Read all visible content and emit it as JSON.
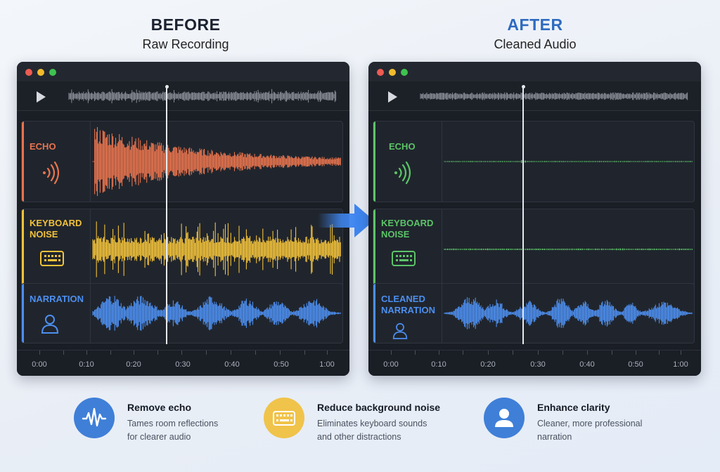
{
  "before": {
    "heading": "BEFORE",
    "subheading": "Raw Recording",
    "tracks": [
      {
        "label_line1": "ECHO",
        "label_line2": "",
        "icon": "sound-waves-icon",
        "color": "#e8744e"
      },
      {
        "label_line1": "KEYBOARD",
        "label_line2": "NOISE",
        "icon": "keyboard-icon",
        "color": "#f2c23a"
      },
      {
        "label_line1": "NARRATION",
        "label_line2": "",
        "icon": "person-icon",
        "color": "#4d8ff0"
      }
    ]
  },
  "after": {
    "heading": "AFTER",
    "subheading": "Cleaned Audio",
    "tracks": [
      {
        "label_line1": "ECHO",
        "label_line2": "",
        "icon": "sound-waves-icon",
        "color": "#5cc468"
      },
      {
        "label_line1": "KEYBOARD",
        "label_line2": "NOISE",
        "icon": "keyboard-icon",
        "color": "#5cc468"
      },
      {
        "label_line1": "CLEANED",
        "label_line2": "NARRATION",
        "icon": "person-icon",
        "color": "#4d8ff0"
      }
    ]
  },
  "timeline": {
    "labels": [
      "0:00",
      "0:10",
      "0:20",
      "0:30",
      "0:40",
      "0:50",
      "1:00"
    ],
    "playhead_time": "0:27"
  },
  "features": [
    {
      "title": "Remove echo",
      "desc_line1": "Tames room reflections",
      "desc_line2": "for clearer audio",
      "icon": "waveform-icon",
      "color": "#3f7fd8"
    },
    {
      "title": "Reduce background noise",
      "desc_line1": "Eliminates keyboard sounds",
      "desc_line2": "and other distractions",
      "icon": "keyboard-icon",
      "color": "#f0c34a"
    },
    {
      "title": "Enhance clarity",
      "desc_line1": "Cleaner, more professional",
      "desc_line2": "narration",
      "icon": "user-icon",
      "color": "#3f7fd8"
    }
  ],
  "colors": {
    "accent_blue": "#2e6bc0",
    "echo_orange": "#e8744e",
    "noise_yellow": "#f2c23a",
    "voice_blue": "#4d8ff0",
    "clean_green": "#5cc468"
  }
}
